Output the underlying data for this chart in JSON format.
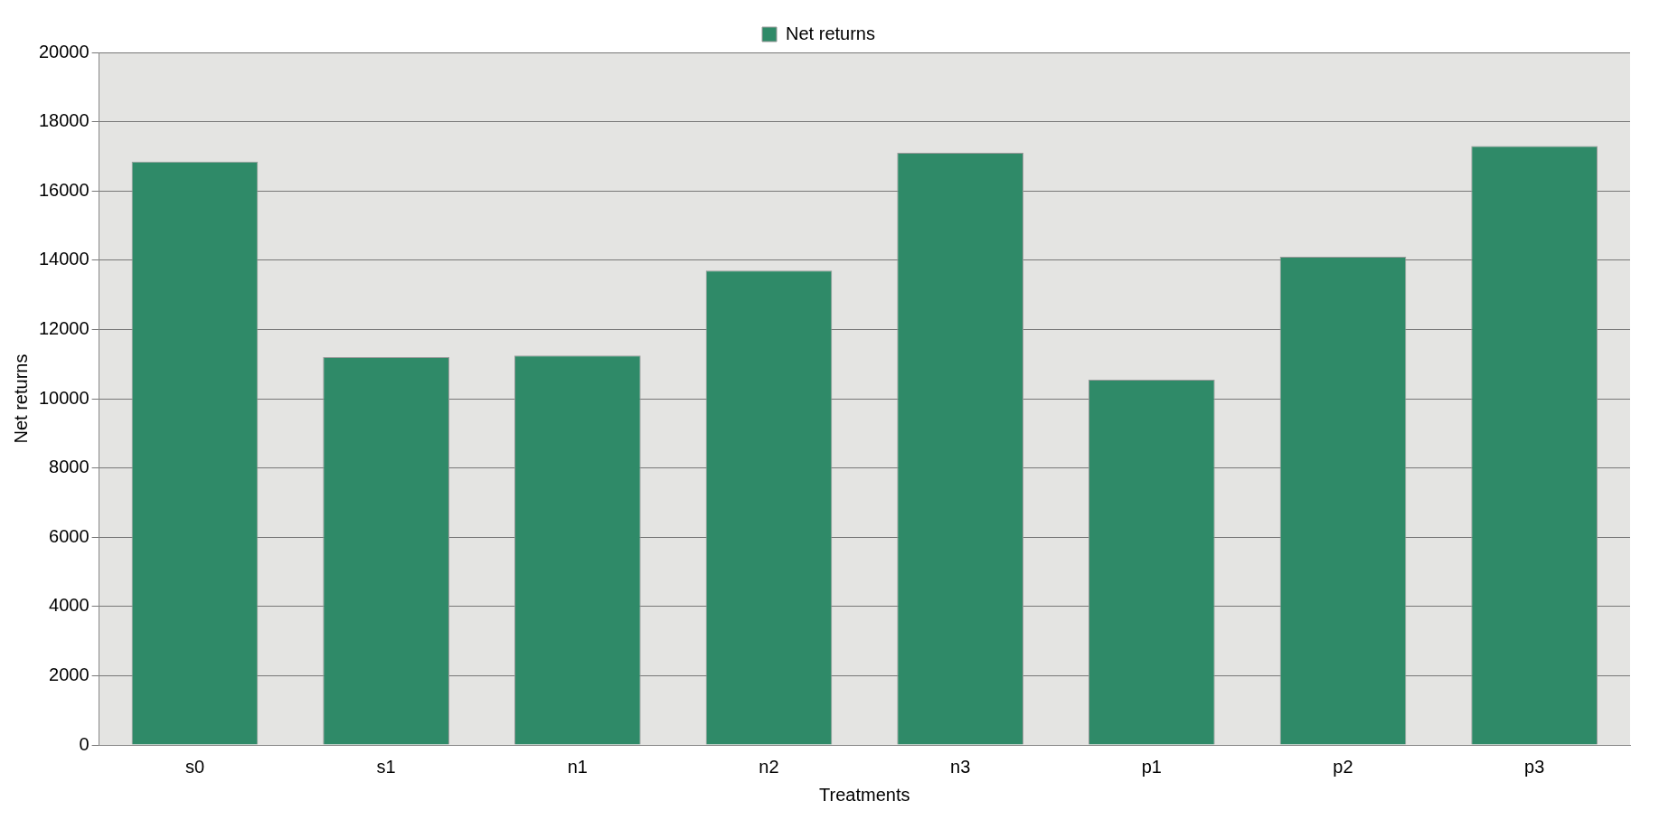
{
  "chart_data": {
    "type": "bar",
    "xlabel": "Treatments",
    "ylabel": "Net returns",
    "categories": [
      "s0",
      "s1",
      "n1",
      "n2",
      "n3",
      "p1",
      "p2",
      "p3"
    ],
    "series": [
      {
        "name": "Net returns",
        "color": "#2f8a68",
        "values": [
          16850,
          11200,
          11250,
          13700,
          17100,
          10550,
          14100,
          17300
        ]
      }
    ],
    "ylim": [
      0,
      20000
    ],
    "yticks": [
      0,
      2000,
      4000,
      6000,
      8000,
      10000,
      12000,
      14000,
      16000,
      18000,
      20000
    ],
    "grid": "y",
    "legend": "top"
  }
}
